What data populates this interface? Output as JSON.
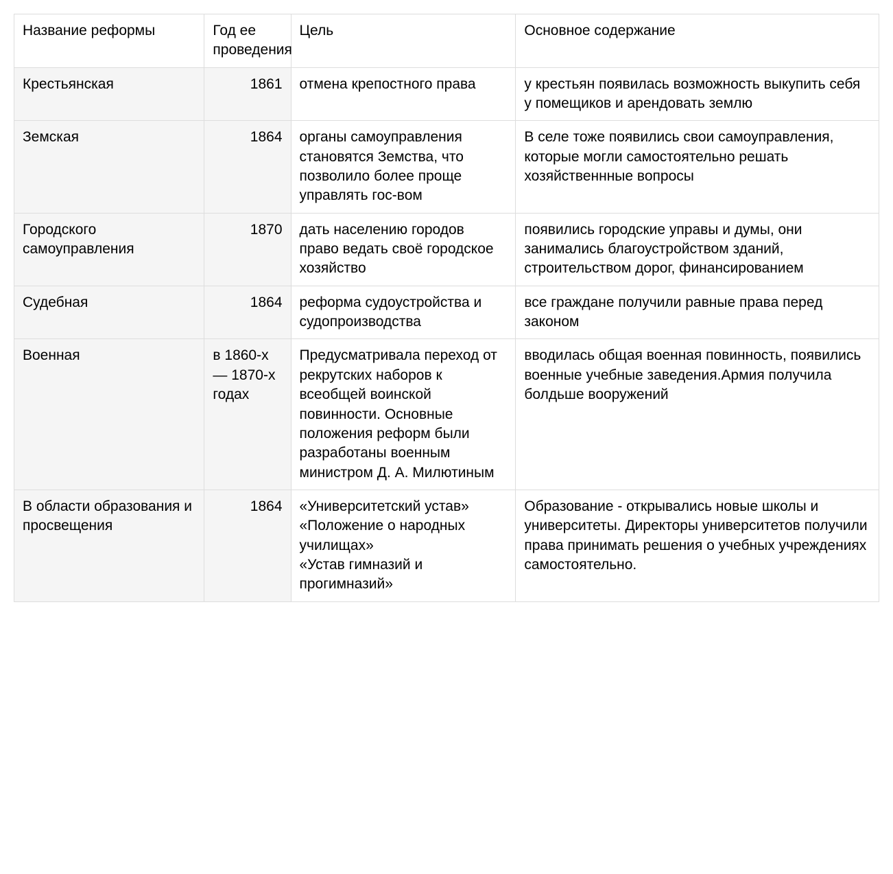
{
  "table": {
    "type": "table",
    "background_color": "#ffffff",
    "border_color": "#dddddd",
    "alt_cell_bg": "#f5f5f5",
    "text_color": "#000000",
    "font_size_pt": 16,
    "column_widths_pct": [
      22,
      10,
      26,
      42
    ],
    "year_align": "right",
    "columns": [
      "Название реформы",
      "Год ее проведения",
      "Цель",
      "Основное содержание"
    ],
    "rows": [
      {
        "name": "Крестьянская",
        "year": "1861",
        "goal": "отмена крепостного права",
        "content": "у крестьян появилась возможность выкупить себя у помещиков и арендовать землю"
      },
      {
        "name": "Земская",
        "year": "1864",
        "goal": "органы самоуправления становятся Земства, что позволило более проще управлять гос-вом",
        "content": "В селе тоже появились свои самоуправления, которые могли самостоятельно решать хозяйственнные вопросы"
      },
      {
        "name": "Городского самоуправления",
        "year": "1870",
        "goal": "дать населению городов право ведать своё городское хозяйство",
        "content": "появились городские управы и думы, они занимались благоустройством зданий, строительством дорог, финансированием"
      },
      {
        "name": "Судебная",
        "year": "1864",
        "goal": "реформа судоустройства и судопроизводства",
        "content": "все граждане получили равные права перед законом"
      },
      {
        "name": "Военная",
        "year": "в 1860-х — 1870-х годах",
        "year_align_left": true,
        "goal": "Предусматривала переход от рекрутских наборов к всеобщей воинской повинности. Основные положения реформ были разработаны военным министром Д. А. Милютиным",
        "content": "вводилась общая военная повинность, появились военные учебные заведения.Армия получила болдьше вооружений"
      },
      {
        "name": "В области образования и просвещения",
        "year": "1864",
        "goal": "«Университетский устав»\n«Положение о народных училищах»\n«Устав гимназий и прогимназий»",
        "content": "Образование - открывались новые школы и университеты. Директоры университетов получили права принимать решения  о учебных учреждениях самостоятельно."
      }
    ]
  }
}
